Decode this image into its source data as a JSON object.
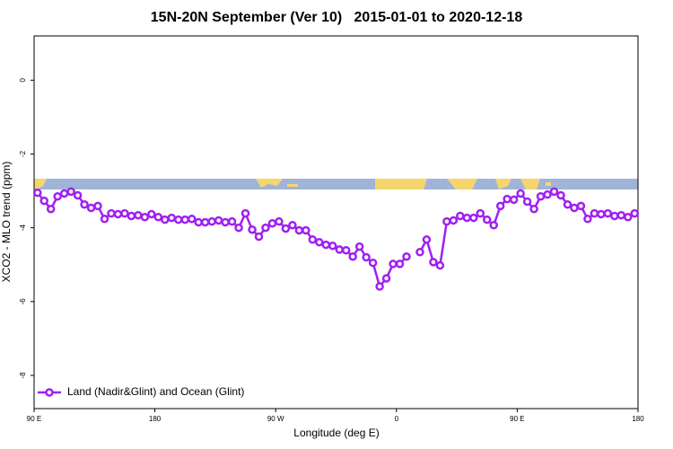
{
  "chart_data": {
    "type": "line",
    "title": "15N-20N September (Ver 10)   2015-01-01 to 2020-12-18",
    "x_label": "Longitude (deg E)",
    "y_label": "XCO2 - MLO trend (ppm)",
    "xlim": [
      90,
      540
    ],
    "ylim": [
      -8.9,
      1.2
    ],
    "xticks": [
      {
        "value": 90,
        "label": "90 E"
      },
      {
        "value": 180,
        "label": "180"
      },
      {
        "value": 270,
        "label": "90 W"
      },
      {
        "value": 360,
        "label": "0"
      },
      {
        "value": 450,
        "label": "90 E"
      },
      {
        "value": 540,
        "label": "180"
      }
    ],
    "yticks": [
      0,
      -2,
      -4,
      -6,
      -8
    ],
    "grid": false,
    "legend": "bottom-left",
    "x": [
      92.5,
      97.5,
      102.5,
      107.5,
      112.5,
      117.5,
      122.5,
      127.5,
      132.5,
      137.5,
      142.5,
      147.5,
      152.5,
      157.5,
      162.5,
      167.5,
      172.5,
      177.5,
      182.5,
      187.5,
      192.5,
      197.5,
      202.5,
      207.5,
      212.5,
      217.5,
      222.5,
      227.5,
      232.5,
      237.5,
      242.5,
      247.5,
      252.5,
      257.5,
      262.5,
      267.5,
      272.5,
      277.5,
      282.5,
      287.5,
      292.5,
      297.5,
      302.5,
      307.5,
      312.5,
      317.5,
      322.5,
      327.5,
      332.5,
      337.5,
      342.5,
      347.5,
      352.5,
      357.5,
      362.5,
      367.5,
      372.5,
      377.5,
      382.5,
      387.5,
      392.5,
      397.5,
      402.5,
      407.5,
      412.5,
      417.5,
      422.5,
      427.5,
      432.5,
      437.5,
      442.5,
      447.5,
      452.5,
      457.5,
      462.5,
      467.5,
      472.5,
      477.5,
      482.5,
      487.5,
      492.5,
      497.5,
      502.5,
      507.5,
      512.5,
      517.5,
      522.5,
      527.5,
      532.5,
      537.5
    ],
    "series": [
      {
        "name": "Land (Nadir&Glint) and Ocean (Glint)",
        "color": "#a020f0",
        "values": [
          -3.05,
          -3.27,
          -3.49,
          -3.15,
          -3.07,
          -3.02,
          -3.12,
          -3.37,
          -3.46,
          -3.41,
          -3.76,
          -3.61,
          -3.63,
          -3.61,
          -3.68,
          -3.66,
          -3.71,
          -3.63,
          -3.71,
          -3.78,
          -3.73,
          -3.78,
          -3.78,
          -3.76,
          -3.85,
          -3.85,
          -3.83,
          -3.8,
          -3.85,
          -3.83,
          -4.0,
          -3.61,
          -4.05,
          -4.24,
          -4.0,
          -3.88,
          -3.83,
          -4.02,
          -3.93,
          -4.07,
          -4.07,
          -4.32,
          -4.39,
          -4.46,
          -4.49,
          -4.59,
          -4.61,
          -4.78,
          -4.51,
          -4.8,
          -4.95,
          -5.59,
          -5.37,
          -4.98,
          -4.98,
          -4.78,
          null,
          -4.66,
          -4.32,
          -4.93,
          -5.02,
          -3.83,
          -3.8,
          -3.68,
          -3.73,
          -3.73,
          -3.61,
          -3.78,
          -3.93,
          -3.41,
          -3.22,
          -3.24,
          -3.07,
          -3.29,
          -3.49,
          -3.15,
          -3.1,
          -3.02,
          -3.12,
          -3.37,
          -3.46,
          -3.41,
          -3.76,
          -3.61,
          -3.63,
          -3.61,
          -3.68,
          -3.66,
          -3.71,
          -3.61
        ]
      }
    ]
  }
}
